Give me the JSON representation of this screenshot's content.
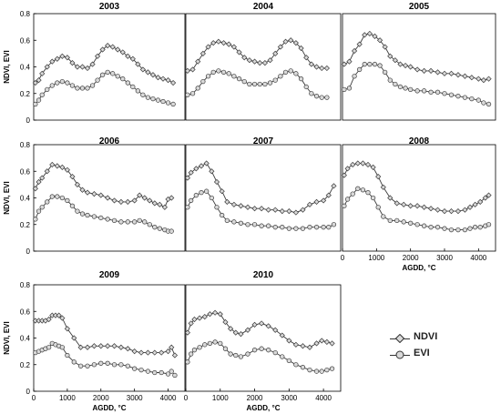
{
  "chart_data": [
    {
      "type": "line",
      "title": "2003",
      "ylabel": "NDVI, EVI",
      "xlabel": "",
      "ylim": [
        0,
        0.8
      ],
      "xlim": [
        0,
        4500
      ],
      "yticks": [
        "0",
        "0.2",
        "0.4",
        "0.6",
        "0.8"
      ],
      "xticks": [],
      "series": [
        {
          "name": "NDVI",
          "x": [
            50,
            150,
            250,
            400,
            550,
            700,
            850,
            1000,
            1150,
            1300,
            1450,
            1600,
            1750,
            1900,
            2050,
            2200,
            2350,
            2500,
            2650,
            2800,
            2950,
            3100,
            3250,
            3400,
            3550,
            3700,
            3850,
            4000,
            4150
          ],
          "values": [
            0.28,
            0.3,
            0.35,
            0.4,
            0.44,
            0.46,
            0.48,
            0.47,
            0.43,
            0.4,
            0.4,
            0.39,
            0.42,
            0.48,
            0.53,
            0.56,
            0.55,
            0.53,
            0.51,
            0.48,
            0.46,
            0.42,
            0.38,
            0.36,
            0.34,
            0.32,
            0.31,
            0.3,
            0.28
          ]
        },
        {
          "name": "EVI",
          "x": [
            50,
            150,
            250,
            400,
            550,
            700,
            850,
            1000,
            1150,
            1300,
            1450,
            1600,
            1750,
            1900,
            2050,
            2200,
            2350,
            2500,
            2650,
            2800,
            2950,
            3100,
            3250,
            3400,
            3550,
            3700,
            3850,
            4000,
            4150
          ],
          "values": [
            0.12,
            0.15,
            0.19,
            0.23,
            0.26,
            0.28,
            0.29,
            0.28,
            0.26,
            0.24,
            0.24,
            0.24,
            0.26,
            0.3,
            0.34,
            0.36,
            0.35,
            0.33,
            0.31,
            0.28,
            0.25,
            0.22,
            0.19,
            0.17,
            0.16,
            0.15,
            0.14,
            0.13,
            0.12
          ]
        }
      ]
    },
    {
      "type": "line",
      "title": "2004",
      "ylabel": "",
      "xlabel": "",
      "ylim": [
        0,
        0.8
      ],
      "xlim": [
        0,
        4500
      ],
      "yticks": [],
      "xticks": [],
      "series": [
        {
          "name": "NDVI",
          "x": [
            50,
            200,
            350,
            500,
            650,
            800,
            950,
            1100,
            1250,
            1400,
            1550,
            1700,
            1850,
            2000,
            2150,
            2300,
            2450,
            2600,
            2750,
            2900,
            3050,
            3200,
            3350,
            3500,
            3650,
            3800,
            3950,
            4100
          ],
          "values": [
            0.37,
            0.38,
            0.44,
            0.5,
            0.55,
            0.58,
            0.59,
            0.58,
            0.57,
            0.55,
            0.51,
            0.47,
            0.45,
            0.44,
            0.43,
            0.43,
            0.45,
            0.5,
            0.55,
            0.59,
            0.6,
            0.58,
            0.54,
            0.47,
            0.42,
            0.4,
            0.39,
            0.39
          ]
        },
        {
          "name": "EVI",
          "x": [
            50,
            200,
            350,
            500,
            650,
            800,
            950,
            1100,
            1250,
            1400,
            1550,
            1700,
            1850,
            2000,
            2150,
            2300,
            2450,
            2600,
            2750,
            2900,
            3050,
            3200,
            3350,
            3500,
            3650,
            3800,
            3950,
            4100
          ],
          "values": [
            0.19,
            0.2,
            0.24,
            0.29,
            0.33,
            0.36,
            0.37,
            0.36,
            0.35,
            0.33,
            0.31,
            0.29,
            0.27,
            0.27,
            0.27,
            0.27,
            0.28,
            0.3,
            0.33,
            0.36,
            0.37,
            0.35,
            0.31,
            0.25,
            0.2,
            0.18,
            0.17,
            0.17
          ]
        }
      ]
    },
    {
      "type": "line",
      "title": "2005",
      "ylabel": "",
      "xlabel": "",
      "ylim": [
        0,
        0.8
      ],
      "xlim": [
        0,
        4500
      ],
      "yticks": [],
      "xticks": [],
      "series": [
        {
          "name": "NDVI",
          "x": [
            50,
            200,
            350,
            500,
            650,
            800,
            950,
            1100,
            1250,
            1400,
            1550,
            1700,
            1850,
            2000,
            2200,
            2400,
            2600,
            2800,
            3000,
            3200,
            3400,
            3600,
            3800,
            4000,
            4150,
            4300
          ],
          "values": [
            0.42,
            0.44,
            0.52,
            0.57,
            0.64,
            0.65,
            0.63,
            0.6,
            0.55,
            0.48,
            0.45,
            0.42,
            0.41,
            0.4,
            0.38,
            0.37,
            0.37,
            0.36,
            0.35,
            0.35,
            0.34,
            0.33,
            0.32,
            0.31,
            0.3,
            0.31
          ]
        },
        {
          "name": "EVI",
          "x": [
            50,
            200,
            350,
            500,
            650,
            800,
            950,
            1100,
            1250,
            1400,
            1550,
            1700,
            1850,
            2000,
            2200,
            2400,
            2600,
            2800,
            3000,
            3200,
            3400,
            3600,
            3800,
            4000,
            4150,
            4300
          ],
          "values": [
            0.23,
            0.24,
            0.33,
            0.38,
            0.42,
            0.42,
            0.42,
            0.41,
            0.36,
            0.3,
            0.27,
            0.25,
            0.24,
            0.23,
            0.22,
            0.22,
            0.21,
            0.21,
            0.2,
            0.19,
            0.18,
            0.17,
            0.16,
            0.15,
            0.13,
            0.12
          ]
        }
      ]
    },
    {
      "type": "line",
      "title": "2006",
      "ylabel": "NDVI, EVI",
      "xlabel": "",
      "ylim": [
        0,
        0.8
      ],
      "xlim": [
        0,
        4500
      ],
      "yticks": [
        "0",
        "0.2",
        "0.4",
        "0.6",
        "0.8"
      ],
      "xticks": [],
      "series": [
        {
          "name": "NDVI",
          "x": [
            50,
            150,
            250,
            400,
            550,
            700,
            850,
            1000,
            1150,
            1300,
            1450,
            1600,
            1800,
            2000,
            2200,
            2400,
            2600,
            2800,
            3000,
            3150,
            3300,
            3450,
            3600,
            3750,
            3900,
            4000,
            4100
          ],
          "values": [
            0.47,
            0.52,
            0.55,
            0.6,
            0.65,
            0.64,
            0.63,
            0.61,
            0.56,
            0.5,
            0.46,
            0.44,
            0.43,
            0.42,
            0.4,
            0.38,
            0.37,
            0.37,
            0.38,
            0.42,
            0.4,
            0.38,
            0.36,
            0.35,
            0.33,
            0.39,
            0.4
          ]
        },
        {
          "name": "EVI",
          "x": [
            50,
            150,
            250,
            400,
            550,
            700,
            850,
            1000,
            1150,
            1300,
            1450,
            1600,
            1800,
            2000,
            2200,
            2400,
            2600,
            2800,
            3000,
            3150,
            3300,
            3450,
            3600,
            3750,
            3900,
            4000,
            4100
          ],
          "values": [
            0.24,
            0.3,
            0.33,
            0.37,
            0.41,
            0.41,
            0.4,
            0.38,
            0.34,
            0.3,
            0.28,
            0.27,
            0.26,
            0.25,
            0.24,
            0.23,
            0.22,
            0.22,
            0.22,
            0.23,
            0.22,
            0.2,
            0.18,
            0.17,
            0.16,
            0.15,
            0.15
          ]
        }
      ]
    },
    {
      "type": "line",
      "title": "2007",
      "ylabel": "",
      "xlabel": "",
      "ylim": [
        0,
        0.8
      ],
      "xlim": [
        0,
        4500
      ],
      "yticks": [],
      "xticks": [],
      "series": [
        {
          "name": "NDVI",
          "x": [
            50,
            150,
            300,
            450,
            600,
            750,
            900,
            1050,
            1200,
            1400,
            1600,
            1800,
            2000,
            2200,
            2400,
            2600,
            2800,
            3000,
            3200,
            3400,
            3600,
            3800,
            4000,
            4150,
            4300
          ],
          "values": [
            0.55,
            0.59,
            0.62,
            0.64,
            0.66,
            0.6,
            0.52,
            0.45,
            0.37,
            0.35,
            0.34,
            0.33,
            0.32,
            0.32,
            0.31,
            0.31,
            0.3,
            0.3,
            0.29,
            0.31,
            0.35,
            0.37,
            0.38,
            0.42,
            0.49
          ]
        },
        {
          "name": "EVI",
          "x": [
            50,
            150,
            300,
            450,
            600,
            750,
            900,
            1050,
            1200,
            1400,
            1600,
            1800,
            2000,
            2200,
            2400,
            2600,
            2800,
            3000,
            3200,
            3400,
            3600,
            3800,
            4000,
            4150,
            4300
          ],
          "values": [
            0.33,
            0.38,
            0.42,
            0.44,
            0.45,
            0.4,
            0.33,
            0.27,
            0.23,
            0.22,
            0.21,
            0.2,
            0.2,
            0.19,
            0.19,
            0.18,
            0.18,
            0.17,
            0.17,
            0.17,
            0.18,
            0.18,
            0.18,
            0.18,
            0.2
          ]
        }
      ]
    },
    {
      "type": "line",
      "title": "2008",
      "ylabel": "",
      "xlabel": "AGDD, °C",
      "ylim": [
        0,
        0.8
      ],
      "xlim": [
        0,
        4500
      ],
      "yticks": [],
      "xticks": [
        "0",
        "1000",
        "2000",
        "3000",
        "4000"
      ],
      "series": [
        {
          "name": "NDVI",
          "x": [
            50,
            150,
            300,
            450,
            600,
            750,
            900,
            1050,
            1200,
            1400,
            1600,
            1800,
            2000,
            2200,
            2400,
            2600,
            2800,
            3000,
            3200,
            3400,
            3600,
            3750,
            3900,
            4050,
            4200,
            4300
          ],
          "values": [
            0.57,
            0.62,
            0.65,
            0.66,
            0.66,
            0.65,
            0.63,
            0.56,
            0.48,
            0.4,
            0.36,
            0.35,
            0.34,
            0.34,
            0.33,
            0.32,
            0.31,
            0.3,
            0.3,
            0.3,
            0.31,
            0.33,
            0.35,
            0.37,
            0.4,
            0.42
          ]
        },
        {
          "name": "EVI",
          "x": [
            50,
            150,
            300,
            450,
            600,
            750,
            900,
            1050,
            1200,
            1400,
            1600,
            1800,
            2000,
            2200,
            2400,
            2600,
            2800,
            3000,
            3200,
            3400,
            3600,
            3750,
            3900,
            4050,
            4200,
            4300
          ],
          "values": [
            0.34,
            0.39,
            0.43,
            0.47,
            0.46,
            0.44,
            0.4,
            0.33,
            0.26,
            0.23,
            0.23,
            0.22,
            0.21,
            0.2,
            0.19,
            0.18,
            0.18,
            0.17,
            0.16,
            0.16,
            0.16,
            0.17,
            0.18,
            0.18,
            0.19,
            0.2
          ]
        }
      ]
    },
    {
      "type": "line",
      "title": "2009",
      "ylabel": "NDVI, EVI",
      "xlabel": "AGDD, °C",
      "ylim": [
        0,
        0.8
      ],
      "xlim": [
        0,
        4500
      ],
      "yticks": [
        "0",
        "0.2",
        "0.4",
        "0.6",
        "0.8"
      ],
      "xticks": [
        "0",
        "1000",
        "2000",
        "3000",
        "4000"
      ],
      "series": [
        {
          "name": "NDVI",
          "x": [
            50,
            150,
            250,
            350,
            450,
            550,
            650,
            750,
            850,
            1000,
            1200,
            1400,
            1600,
            1800,
            2000,
            2200,
            2400,
            2600,
            2800,
            3000,
            3200,
            3400,
            3600,
            3800,
            4000,
            4100,
            4200
          ],
          "values": [
            0.53,
            0.53,
            0.53,
            0.53,
            0.54,
            0.57,
            0.57,
            0.57,
            0.55,
            0.47,
            0.4,
            0.33,
            0.33,
            0.34,
            0.34,
            0.34,
            0.34,
            0.33,
            0.32,
            0.3,
            0.29,
            0.29,
            0.29,
            0.29,
            0.3,
            0.33,
            0.27
          ]
        },
        {
          "name": "EVI",
          "x": [
            50,
            150,
            250,
            350,
            450,
            550,
            650,
            750,
            850,
            1000,
            1200,
            1400,
            1600,
            1800,
            2000,
            2200,
            2400,
            2600,
            2800,
            3000,
            3200,
            3400,
            3600,
            3800,
            4000,
            4100,
            4200
          ],
          "values": [
            0.29,
            0.3,
            0.31,
            0.32,
            0.33,
            0.36,
            0.35,
            0.34,
            0.33,
            0.27,
            0.22,
            0.19,
            0.19,
            0.2,
            0.21,
            0.21,
            0.2,
            0.2,
            0.19,
            0.17,
            0.16,
            0.15,
            0.14,
            0.14,
            0.13,
            0.15,
            0.12
          ]
        }
      ]
    },
    {
      "type": "line",
      "title": "2010",
      "ylabel": "",
      "xlabel": "AGDD, °C",
      "ylim": [
        0,
        0.8
      ],
      "xlim": [
        0,
        4500
      ],
      "yticks": [],
      "xticks": [
        "0",
        "1000",
        "2000",
        "3000",
        "4000"
      ],
      "series": [
        {
          "name": "NDVI",
          "x": [
            50,
            150,
            250,
            400,
            550,
            700,
            850,
            1000,
            1150,
            1300,
            1450,
            1600,
            1800,
            2000,
            2200,
            2400,
            2600,
            2800,
            3000,
            3200,
            3400,
            3600,
            3800,
            3950,
            4100,
            4250
          ],
          "values": [
            0.44,
            0.51,
            0.54,
            0.55,
            0.56,
            0.58,
            0.59,
            0.58,
            0.52,
            0.47,
            0.44,
            0.43,
            0.46,
            0.5,
            0.51,
            0.49,
            0.46,
            0.42,
            0.38,
            0.35,
            0.34,
            0.33,
            0.36,
            0.38,
            0.37,
            0.36
          ]
        },
        {
          "name": "EVI",
          "x": [
            50,
            150,
            250,
            400,
            550,
            700,
            850,
            1000,
            1150,
            1300,
            1450,
            1600,
            1800,
            2000,
            2200,
            2400,
            2600,
            2800,
            3000,
            3200,
            3400,
            3600,
            3800,
            3950,
            4100,
            4250
          ],
          "values": [
            0.22,
            0.28,
            0.31,
            0.33,
            0.35,
            0.36,
            0.37,
            0.36,
            0.32,
            0.28,
            0.27,
            0.26,
            0.28,
            0.31,
            0.32,
            0.31,
            0.29,
            0.26,
            0.23,
            0.2,
            0.18,
            0.16,
            0.15,
            0.15,
            0.16,
            0.17
          ]
        }
      ]
    }
  ],
  "legend": {
    "items": [
      {
        "label": "NDVI",
        "marker": "diamond"
      },
      {
        "label": "EVI",
        "marker": "circle"
      }
    ]
  },
  "colors": {
    "line": "#3a3a3a",
    "frame": "#000000",
    "marker_fill": "#d9d9d9",
    "text": "#000000"
  }
}
